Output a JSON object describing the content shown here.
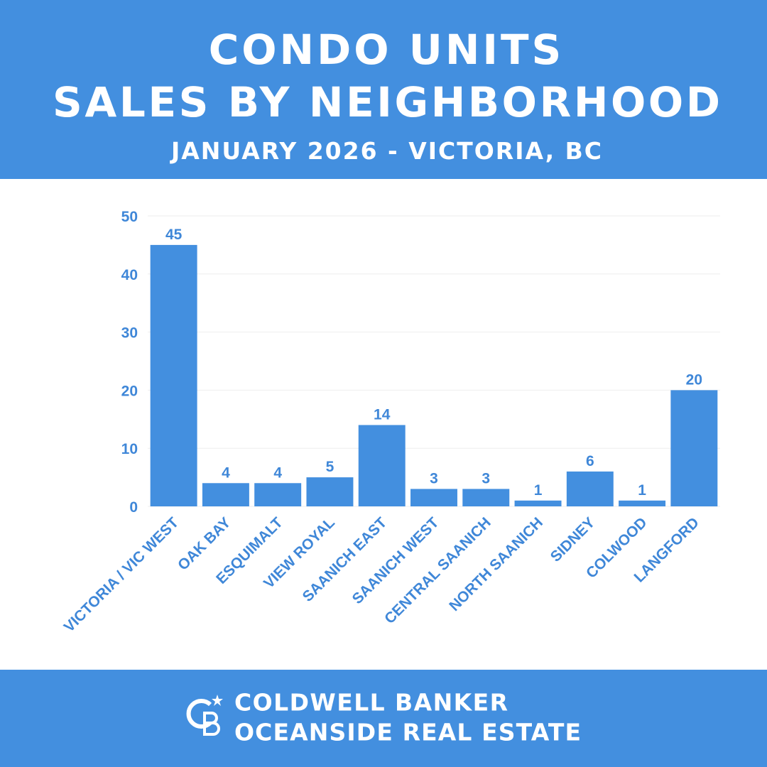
{
  "chart_data": {
    "type": "bar",
    "title": [
      "CONDO UNITS",
      "SALES BY NEIGHBORHOOD"
    ],
    "subtitle": "JANUARY 2026 - VICTORIA, BC",
    "categories": [
      "VICTORIA / VIC WEST",
      "OAK BAY",
      "ESQUIMALT",
      "VIEW ROYAL",
      "SAANICH EAST",
      "SAANICH WEST",
      "CENTRAL SAANICH",
      "NORTH SAANICH",
      "SIDNEY",
      "COLWOOD",
      "LANGFORD"
    ],
    "values": [
      45,
      4,
      4,
      5,
      14,
      3,
      3,
      1,
      6,
      1,
      20
    ],
    "color": "#438fdf",
    "ylim": [
      0,
      50
    ],
    "yticks": [
      0,
      10,
      20,
      30,
      40,
      50
    ],
    "grid": true
  },
  "footer": {
    "lines": [
      "COLDWELL BANKER",
      "OCEANSIDE REAL ESTATE"
    ]
  }
}
